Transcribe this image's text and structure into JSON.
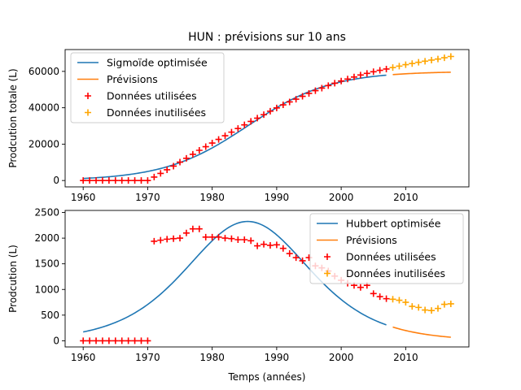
{
  "figure_title": "HUN : prévisions sur 10 ans",
  "xlabel": "Temps (années)",
  "chart_data": [
    {
      "type": "line",
      "ylabel": "Prodcution totale (L)",
      "xlim": [
        1957.2,
        2019.8
      ],
      "ylim": [
        -3500,
        72000
      ],
      "xticks": [
        1960,
        1970,
        1980,
        1990,
        2000,
        2010
      ],
      "yticks": [
        0,
        20000,
        40000,
        60000
      ],
      "legend_position": "upper-left",
      "legend": [
        "Sigmoïde optimisée",
        "Prévisions",
        "Données utilisées",
        "Données inutilisées"
      ],
      "colors": {
        "fit": "#1f77b4",
        "forecast": "#ff7f0e",
        "used": "#ff0000",
        "unused": "#ffa500"
      },
      "curve": {
        "kind": "sigmoid",
        "K": 60000,
        "r": 0.155,
        "t0": 1985.5,
        "fit_range": [
          1960,
          2007
        ],
        "forecast_range": [
          2008,
          2017
        ]
      },
      "used_x": [
        1960,
        1961,
        1962,
        1963,
        1964,
        1965,
        1966,
        1967,
        1968,
        1969,
        1970,
        1971,
        1972,
        1973,
        1974,
        1975,
        1976,
        1977,
        1978,
        1979,
        1980,
        1981,
        1982,
        1983,
        1984,
        1985,
        1986,
        1987,
        1988,
        1989,
        1990,
        1991,
        1992,
        1993,
        1994,
        1995,
        1996,
        1997,
        1998,
        1999,
        2000,
        2001,
        2002,
        2003,
        2004,
        2005,
        2006,
        2007
      ],
      "used_y": [
        0,
        0,
        0,
        0,
        0,
        0,
        0,
        0,
        0,
        0,
        0,
        1900,
        3900,
        5900,
        7900,
        10100,
        12200,
        14400,
        16600,
        18600,
        20600,
        22600,
        24600,
        26600,
        28600,
        30600,
        32500,
        34300,
        36200,
        38100,
        39900,
        41600,
        43200,
        44700,
        46300,
        47900,
        49400,
        50800,
        52200,
        53500,
        54700,
        55800,
        56900,
        58000,
        58900,
        59800,
        60600,
        61300
      ],
      "unused_x": [
        2008,
        2009,
        2010,
        2011,
        2012,
        2013,
        2014,
        2015,
        2016,
        2017
      ],
      "unused_y": [
        62100,
        62900,
        63700,
        64300,
        65000,
        65600,
        66200,
        66800,
        67500,
        68200
      ]
    },
    {
      "type": "line",
      "ylabel": "Prodcution (L)",
      "xlim": [
        1957.2,
        2019.8
      ],
      "ylim": [
        -120,
        2540
      ],
      "xticks": [
        1960,
        1970,
        1980,
        1990,
        2000,
        2010
      ],
      "yticks": [
        0,
        500,
        1000,
        1500,
        2000,
        2500
      ],
      "legend_position": "upper-right",
      "legend": [
        "Hubbert optimisée",
        "Prévisions",
        "Données utilisées",
        "Données inutilisées"
      ],
      "colors": {
        "fit": "#1f77b4",
        "forecast": "#ff7f0e",
        "used": "#ff0000",
        "unused": "#ffa500"
      },
      "curve": {
        "kind": "hubbert",
        "K": 60000,
        "r": 0.155,
        "t0": 1985.5,
        "fit_range": [
          1960,
          2007
        ],
        "forecast_range": [
          2008,
          2017
        ]
      },
      "used_x": [
        1960,
        1961,
        1962,
        1963,
        1964,
        1965,
        1966,
        1967,
        1968,
        1969,
        1970,
        1971,
        1972,
        1973,
        1974,
        1975,
        1976,
        1977,
        1978,
        1979,
        1980,
        1981,
        1982,
        1983,
        1984,
        1985,
        1986,
        1987,
        1988,
        1989,
        1990,
        1991,
        1992,
        1993,
        1994,
        1995,
        1996,
        1997,
        1998,
        1999,
        2000,
        2001,
        2002,
        2003,
        2004,
        2005,
        2006,
        2007
      ],
      "used_y": [
        0,
        0,
        0,
        0,
        0,
        0,
        0,
        0,
        0,
        0,
        0,
        1940,
        1960,
        1980,
        1990,
        2000,
        2100,
        2180,
        2180,
        2020,
        2020,
        2020,
        2000,
        1990,
        1970,
        1970,
        1950,
        1850,
        1880,
        1860,
        1870,
        1800,
        1700,
        1620,
        1560,
        1620,
        1460,
        1420,
        1360,
        1260,
        1180,
        1120,
        1080,
        1040,
        1080,
        920,
        860,
        820
      ],
      "unused_x": [
        2008,
        2009,
        2010,
        2011,
        2012,
        2013,
        2014,
        2015,
        2016,
        2017
      ],
      "unused_y": [
        810,
        790,
        750,
        670,
        650,
        600,
        590,
        630,
        710,
        720
      ]
    }
  ]
}
